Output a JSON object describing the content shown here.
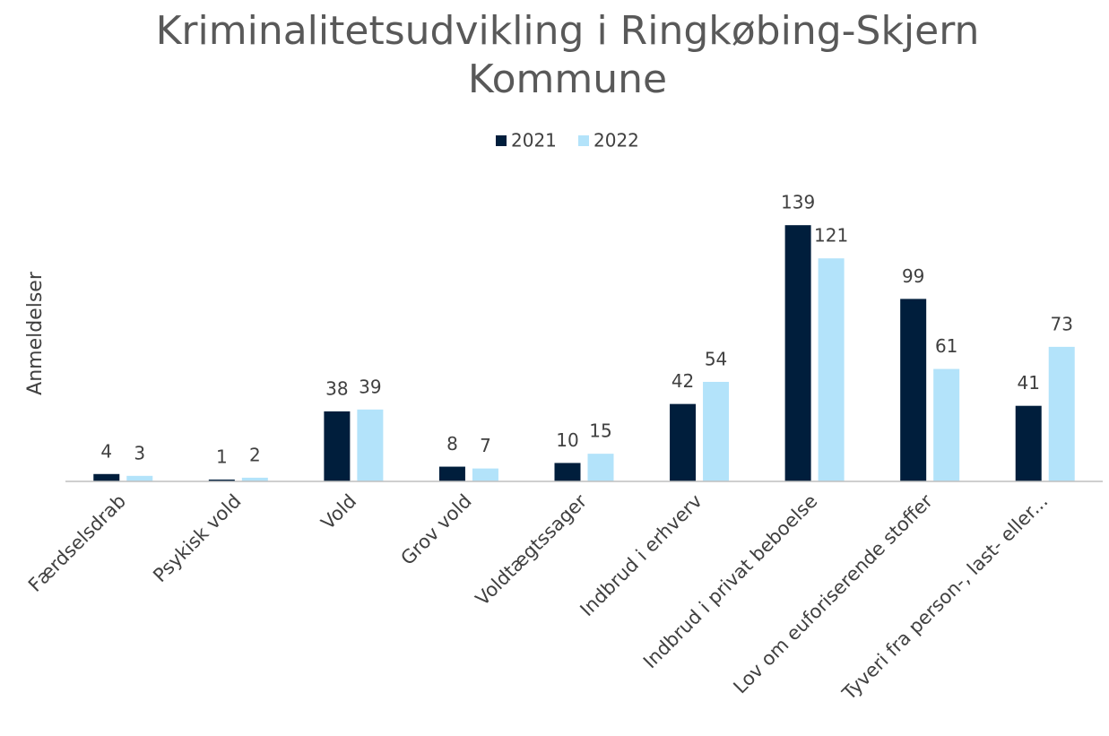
{
  "chart_data": {
    "type": "bar",
    "title": "Kriminalitetsudvikling i Ringkøbing-Skjern Kommune",
    "y_label": "Anmeldelser",
    "categories": [
      "Færdselsdrab",
      "Psykisk vold",
      "Vold",
      "Grov vold",
      "Voldtægtssager",
      "Indbrud i erhverv",
      "Indbrud i privat beboelse",
      "Lov om euforiserende stoffer",
      "Tyveri fra person-, last- eller..."
    ],
    "series": [
      {
        "name": "2021",
        "color": "#001e3c",
        "values": [
          4,
          1,
          38,
          8,
          10,
          42,
          139,
          99,
          41
        ]
      },
      {
        "name": "2022",
        "color": "#b3e3fa",
        "values": [
          3,
          2,
          39,
          7,
          15,
          54,
          121,
          61,
          73
        ]
      }
    ],
    "ylim": [
      0,
      160
    ],
    "legend": "top"
  }
}
